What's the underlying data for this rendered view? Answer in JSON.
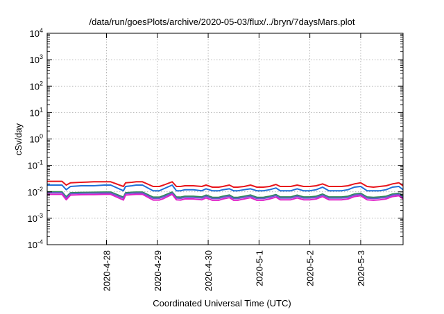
{
  "chart_data": {
    "type": "line",
    "title": "/data/run/goesPlots/archive/2020-05-03/flux/../bryn/7daysMars.plot",
    "xlabel": "Coordinated Universal Time (UTC)",
    "ylabel": "cSv/day",
    "yscale": "log",
    "ylim": [
      0.0001,
      10000
    ],
    "y_ticks": [
      {
        "base": "10",
        "exp": "-4",
        "value": 0.0001
      },
      {
        "base": "10",
        "exp": "-3",
        "value": 0.001
      },
      {
        "base": "10",
        "exp": "-2",
        "value": 0.01
      },
      {
        "base": "10",
        "exp": "-1",
        "value": 0.1
      },
      {
        "base": "10",
        "exp": "0",
        "value": 1
      },
      {
        "base": "10",
        "exp": "1",
        "value": 10
      },
      {
        "base": "10",
        "exp": "2",
        "value": 100
      },
      {
        "base": "10",
        "exp": "3",
        "value": 1000
      },
      {
        "base": "10",
        "exp": "4",
        "value": 10000
      }
    ],
    "x_ticks": [
      {
        "label": "2020-4-28",
        "date": "2020-04-28"
      },
      {
        "label": "2020-4-29",
        "date": "2020-04-29"
      },
      {
        "label": "2020-4-30",
        "date": "2020-04-30"
      },
      {
        "label": "2020-5-1",
        "date": "2020-05-01"
      },
      {
        "label": "2020-5-2",
        "date": "2020-05-02"
      },
      {
        "label": "2020-5-3",
        "date": "2020-05-03"
      }
    ],
    "xlim": [
      "2020-04-26 20:00",
      "2020-05-03 20:00"
    ],
    "grid": true,
    "x": [
      "2020-04-26 20:00",
      "2020-04-27 03:00",
      "2020-04-27 05:00",
      "2020-04-27 07:00",
      "2020-04-27 12:00",
      "2020-04-27 18:00",
      "2020-04-27 23:00",
      "2020-04-28 02:00",
      "2020-04-28 08:00",
      "2020-04-28 09:00",
      "2020-04-28 12:00",
      "2020-04-28 14:00",
      "2020-04-28 17:00",
      "2020-04-28 22:00",
      "2020-04-29 01:00",
      "2020-04-29 03:00",
      "2020-04-29 07:00",
      "2020-04-29 09:00",
      "2020-04-29 11:00",
      "2020-04-29 13:00",
      "2020-04-29 17:00",
      "2020-04-29 21:00",
      "2020-04-29 23:00",
      "2020-04-30 02:00",
      "2020-04-30 05:00",
      "2020-04-30 07:00",
      "2020-04-30 10:00",
      "2020-04-30 12:00",
      "2020-04-30 14:00",
      "2020-04-30 17:00",
      "2020-04-30 20:00",
      "2020-04-30 23:00",
      "2020-05-01 02:00",
      "2020-05-01 05:00",
      "2020-05-01 08:00",
      "2020-05-01 10:00",
      "2020-05-01 12:00",
      "2020-05-01 15:00",
      "2020-05-01 18:00",
      "2020-05-01 21:00",
      "2020-05-02 00:00",
      "2020-05-02 03:00",
      "2020-05-02 06:00",
      "2020-05-02 09:00",
      "2020-05-02 12:00",
      "2020-05-02 15:00",
      "2020-05-02 18:00",
      "2020-05-02 21:00",
      "2020-05-03 00:00",
      "2020-05-03 03:00",
      "2020-05-03 06:00",
      "2020-05-03 09:00",
      "2020-05-03 12:00",
      "2020-05-03 15:00",
      "2020-05-03 18:00",
      "2020-05-03 20:00"
    ],
    "series": [
      {
        "color": "#e8141b",
        "values": [
          0.025,
          0.025,
          0.018,
          0.022,
          0.023,
          0.024,
          0.024,
          0.024,
          0.016,
          0.022,
          0.023,
          0.024,
          0.024,
          0.016,
          0.016,
          0.018,
          0.024,
          0.016,
          0.016,
          0.017,
          0.017,
          0.016,
          0.018,
          0.015,
          0.015,
          0.016,
          0.018,
          0.015,
          0.015,
          0.016,
          0.018,
          0.015,
          0.015,
          0.016,
          0.019,
          0.016,
          0.016,
          0.016,
          0.018,
          0.016,
          0.016,
          0.017,
          0.02,
          0.016,
          0.016,
          0.016,
          0.017,
          0.02,
          0.022,
          0.016,
          0.015,
          0.016,
          0.017,
          0.02,
          0.022,
          0.017
        ]
      },
      {
        "color": "#1f6fd6",
        "values": [
          0.018,
          0.018,
          0.012,
          0.016,
          0.017,
          0.017,
          0.018,
          0.018,
          0.011,
          0.016,
          0.017,
          0.018,
          0.018,
          0.011,
          0.011,
          0.013,
          0.018,
          0.011,
          0.011,
          0.012,
          0.012,
          0.011,
          0.013,
          0.011,
          0.011,
          0.012,
          0.013,
          0.011,
          0.011,
          0.012,
          0.013,
          0.011,
          0.011,
          0.012,
          0.014,
          0.011,
          0.011,
          0.011,
          0.013,
          0.011,
          0.011,
          0.012,
          0.015,
          0.011,
          0.011,
          0.011,
          0.012,
          0.015,
          0.016,
          0.011,
          0.011,
          0.011,
          0.012,
          0.015,
          0.016,
          0.012
        ]
      },
      {
        "color": "#2e8b57",
        "values": [
          0.01,
          0.01,
          0.0065,
          0.0092,
          0.0095,
          0.0096,
          0.0098,
          0.0098,
          0.0063,
          0.0092,
          0.0096,
          0.0098,
          0.0098,
          0.0063,
          0.0063,
          0.0072,
          0.0098,
          0.0064,
          0.0063,
          0.0068,
          0.0068,
          0.0064,
          0.0075,
          0.0062,
          0.0062,
          0.0068,
          0.0076,
          0.0062,
          0.0062,
          0.0068,
          0.0076,
          0.0062,
          0.0062,
          0.0068,
          0.0079,
          0.0064,
          0.0064,
          0.0064,
          0.0075,
          0.0064,
          0.0064,
          0.0068,
          0.0082,
          0.0064,
          0.0064,
          0.0064,
          0.0068,
          0.0082,
          0.0088,
          0.0064,
          0.0062,
          0.0064,
          0.0068,
          0.0082,
          0.0088,
          0.0068
        ]
      },
      {
        "color": "#6a5acd",
        "values": [
          0.0092,
          0.0092,
          0.0058,
          0.0085,
          0.0088,
          0.0089,
          0.009,
          0.009,
          0.0057,
          0.0085,
          0.0089,
          0.009,
          0.009,
          0.0057,
          0.0057,
          0.0065,
          0.009,
          0.0058,
          0.0057,
          0.0062,
          0.0062,
          0.0058,
          0.0068,
          0.0056,
          0.0056,
          0.0062,
          0.0069,
          0.0056,
          0.0056,
          0.0062,
          0.0069,
          0.0056,
          0.0056,
          0.0062,
          0.0072,
          0.0058,
          0.0058,
          0.0058,
          0.0068,
          0.0058,
          0.0058,
          0.0062,
          0.0075,
          0.0058,
          0.0058,
          0.0058,
          0.0062,
          0.0075,
          0.008,
          0.0058,
          0.0056,
          0.0058,
          0.0062,
          0.0075,
          0.008,
          0.0062
        ]
      },
      {
        "color": "#e020c8",
        "values": [
          0.008,
          0.008,
          0.005,
          0.0075,
          0.0078,
          0.0079,
          0.008,
          0.008,
          0.0049,
          0.0075,
          0.0079,
          0.008,
          0.008,
          0.0049,
          0.0049,
          0.0056,
          0.008,
          0.005,
          0.0049,
          0.0054,
          0.0054,
          0.005,
          0.0059,
          0.0048,
          0.0048,
          0.0054,
          0.006,
          0.0048,
          0.0048,
          0.0054,
          0.006,
          0.0048,
          0.0048,
          0.0054,
          0.0063,
          0.005,
          0.005,
          0.005,
          0.0059,
          0.005,
          0.005,
          0.0054,
          0.0066,
          0.005,
          0.005,
          0.005,
          0.0054,
          0.0066,
          0.0071,
          0.005,
          0.0048,
          0.005,
          0.0054,
          0.0066,
          0.0071,
          0.0054
        ]
      }
    ]
  }
}
